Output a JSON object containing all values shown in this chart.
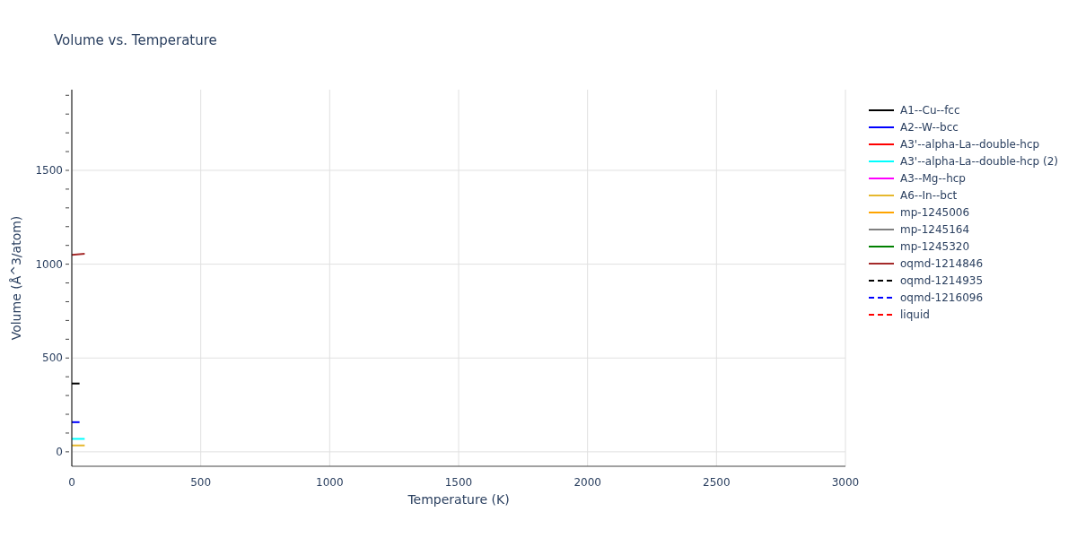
{
  "chart_data": {
    "type": "line",
    "title": "Volume vs. Temperature",
    "xlabel": "Temperature (K)",
    "ylabel": "Volume (Å^3/atom)",
    "xlim": [
      0,
      3000
    ],
    "xticks": [
      0,
      500,
      1000,
      1500,
      2000,
      2500,
      3000
    ],
    "ylim": [
      -77,
      1930
    ],
    "yticks": [
      0,
      {
        "value": 100,
        "label": null
      },
      {
        "value": 200,
        "label": null
      },
      {
        "value": 300,
        "label": null
      },
      {
        "value": 400,
        "label": null
      },
      500,
      {
        "value": 600,
        "label": null
      },
      {
        "value": 700,
        "label": null
      },
      {
        "value": 800,
        "label": null
      },
      {
        "value": 900,
        "label": null
      },
      1000,
      {
        "value": 1100,
        "label": null
      },
      {
        "value": 1200,
        "label": null
      },
      {
        "value": 1300,
        "label": null
      },
      {
        "value": 1400,
        "label": null
      },
      1500,
      {
        "value": 1600,
        "label": null
      },
      {
        "value": 1700,
        "label": null
      },
      {
        "value": 1800,
        "label": null
      },
      {
        "value": 1900,
        "label": null
      }
    ],
    "grid": true,
    "legend": "top right",
    "marker": "none",
    "series": [
      {
        "name": "A1--Cu--fcc",
        "color": "#000000",
        "x": [
          0,
          30
        ],
        "values": [
          364,
          364
        ]
      },
      {
        "name": "A2--W--bcc",
        "color": "#0000ff",
        "x": [
          0,
          30
        ],
        "values": [
          158,
          158
        ]
      },
      {
        "name": "A3'--alpha-La--double-hcp",
        "color": "#ff0000",
        "values": [
          null
        ]
      },
      {
        "name": "A3'--alpha-La--double-hcp (2)",
        "color": "#00ffff",
        "x": [
          0,
          50
        ],
        "values": [
          69,
          69
        ]
      },
      {
        "name": "A3--Mg--hcp",
        "color": "#ff00ff",
        "values": [
          null
        ]
      },
      {
        "name": "A6--In--bct",
        "color": "#e6b82e",
        "x": [
          0,
          50
        ],
        "values": [
          34,
          34
        ]
      },
      {
        "name": "mp-1245006",
        "color": "#ffa500",
        "values": [
          null
        ]
      },
      {
        "name": "mp-1245164",
        "color": "#808080",
        "values": [
          null
        ]
      },
      {
        "name": "mp-1245320",
        "color": "#008000",
        "values": [
          null
        ]
      },
      {
        "name": "oqmd-1214846",
        "color": "#a52a2a",
        "x": [
          0,
          50
        ],
        "values": [
          1050,
          1055
        ]
      },
      {
        "name": "oqmd-1214935",
        "color": "#000000",
        "line_style": "dashed",
        "values": [
          null
        ]
      },
      {
        "name": "oqmd-1216096",
        "color": "#0000ff",
        "line_style": "dashed",
        "values": [
          null
        ]
      },
      {
        "name": "liquid",
        "color": "#ff0000",
        "line_style": "dashed",
        "values": [
          null
        ]
      }
    ]
  }
}
